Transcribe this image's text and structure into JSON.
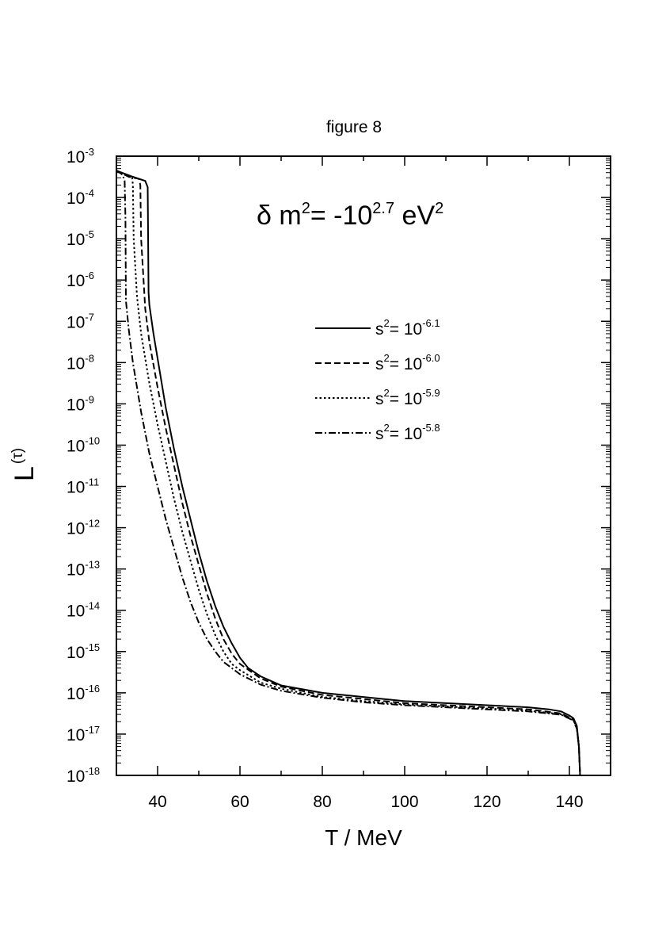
{
  "chart_data": {
    "type": "line",
    "title": "figure 8",
    "xlabel": "T / MeV",
    "ylabel": {
      "base": "L",
      "sup": "(τ)"
    },
    "annotation": {
      "prefix": "δ m",
      "sup1": "2",
      "mid": "= -10",
      "sup2": "2.7",
      "unit": " eV",
      "sup3": "2"
    },
    "xlim": [
      30,
      150
    ],
    "ylim_log10": [
      -18,
      -3
    ],
    "y_scale": "log",
    "x_ticks": [
      40,
      60,
      80,
      100,
      120,
      140
    ],
    "y_ticks_exp": [
      -3,
      -4,
      -5,
      -6,
      -7,
      -8,
      -9,
      -10,
      -11,
      -12,
      -13,
      -14,
      -15,
      -16,
      -17,
      -18
    ],
    "y_tick_base": "10",
    "grid": false,
    "legend_position": "upper-center",
    "series": [
      {
        "name": "s² = 10^-6.1",
        "label_base": "s",
        "label_sup": "2",
        "label_mid": "= 10",
        "label_exp": "-6.1",
        "dash": "solid",
        "points": [
          [
            30,
            -3.35
          ],
          [
            34,
            -3.5
          ],
          [
            37,
            -3.6
          ],
          [
            37.6,
            -3.75
          ],
          [
            37.8,
            -6.3
          ],
          [
            38,
            -6.6
          ],
          [
            39,
            -7.3
          ],
          [
            40,
            -7.9
          ],
          [
            42,
            -9.1
          ],
          [
            44,
            -10.1
          ],
          [
            46,
            -11.0
          ],
          [
            48,
            -11.8
          ],
          [
            50,
            -12.6
          ],
          [
            52,
            -13.3
          ],
          [
            54,
            -13.9
          ],
          [
            56,
            -14.4
          ],
          [
            58,
            -14.8
          ],
          [
            60,
            -15.15
          ],
          [
            62,
            -15.4
          ],
          [
            65,
            -15.6
          ],
          [
            70,
            -15.82
          ],
          [
            80,
            -16.0
          ],
          [
            90,
            -16.1
          ],
          [
            100,
            -16.2
          ],
          [
            110,
            -16.25
          ],
          [
            120,
            -16.3
          ],
          [
            130,
            -16.35
          ],
          [
            135,
            -16.4
          ],
          [
            138,
            -16.45
          ],
          [
            140,
            -16.55
          ],
          [
            141,
            -16.62
          ],
          [
            141.8,
            -16.8
          ],
          [
            142.3,
            -17.3
          ],
          [
            142.6,
            -18.0
          ]
        ]
      },
      {
        "name": "s² = 10^-6.0",
        "label_base": "s",
        "label_sup": "2",
        "label_mid": "= 10",
        "label_exp": "-6.0",
        "dash": "dashed",
        "points": [
          [
            30,
            -3.35
          ],
          [
            33,
            -3.5
          ],
          [
            35.5,
            -3.55
          ],
          [
            35.8,
            -3.7
          ],
          [
            36,
            -5.0
          ],
          [
            37,
            -6.7
          ],
          [
            38,
            -7.5
          ],
          [
            40,
            -8.6
          ],
          [
            42,
            -9.6
          ],
          [
            44,
            -10.5
          ],
          [
            46,
            -11.4
          ],
          [
            48,
            -12.2
          ],
          [
            50,
            -12.9
          ],
          [
            52,
            -13.6
          ],
          [
            54,
            -14.2
          ],
          [
            56,
            -14.7
          ],
          [
            58,
            -15.05
          ],
          [
            60,
            -15.3
          ],
          [
            65,
            -15.65
          ],
          [
            70,
            -15.85
          ],
          [
            80,
            -16.05
          ],
          [
            90,
            -16.15
          ],
          [
            100,
            -16.25
          ],
          [
            110,
            -16.3
          ],
          [
            120,
            -16.35
          ],
          [
            130,
            -16.4
          ],
          [
            138,
            -16.5
          ],
          [
            141,
            -16.65
          ],
          [
            141.8,
            -16.85
          ],
          [
            142.3,
            -17.3
          ],
          [
            142.6,
            -18.0
          ]
        ]
      },
      {
        "name": "s² = 10^-5.9",
        "label_base": "s",
        "label_sup": "2",
        "label_mid": "= 10",
        "label_exp": "-5.9",
        "dash": "dotted",
        "points": [
          [
            30,
            -3.35
          ],
          [
            32,
            -3.45
          ],
          [
            33.8,
            -3.5
          ],
          [
            34,
            -3.7
          ],
          [
            34.2,
            -5.0
          ],
          [
            35,
            -6.4
          ],
          [
            36,
            -7.3
          ],
          [
            38,
            -8.5
          ],
          [
            40,
            -9.5
          ],
          [
            42,
            -10.4
          ],
          [
            44,
            -11.3
          ],
          [
            46,
            -12.1
          ],
          [
            48,
            -12.8
          ],
          [
            50,
            -13.5
          ],
          [
            52,
            -14.1
          ],
          [
            54,
            -14.6
          ],
          [
            56,
            -15.0
          ],
          [
            58,
            -15.3
          ],
          [
            60,
            -15.45
          ],
          [
            65,
            -15.75
          ],
          [
            70,
            -15.9
          ],
          [
            80,
            -16.1
          ],
          [
            90,
            -16.2
          ],
          [
            100,
            -16.28
          ],
          [
            110,
            -16.33
          ],
          [
            120,
            -16.38
          ],
          [
            130,
            -16.43
          ],
          [
            138,
            -16.52
          ],
          [
            141,
            -16.66
          ],
          [
            141.8,
            -16.86
          ],
          [
            142.3,
            -17.3
          ],
          [
            142.6,
            -18.0
          ]
        ]
      },
      {
        "name": "s² = 10^-5.8",
        "label_base": "s",
        "label_sup": "2",
        "label_mid": "= 10",
        "label_exp": "-5.8",
        "dash": "dashdot",
        "points": [
          [
            30,
            -3.35
          ],
          [
            31.5,
            -3.45
          ],
          [
            32,
            -3.6
          ],
          [
            32.2,
            -4.5
          ],
          [
            32.3,
            -6.5
          ],
          [
            33,
            -7.2
          ],
          [
            34,
            -8.0
          ],
          [
            36,
            -9.2
          ],
          [
            38,
            -10.2
          ],
          [
            40,
            -11.0
          ],
          [
            42,
            -11.8
          ],
          [
            44,
            -12.5
          ],
          [
            46,
            -13.2
          ],
          [
            48,
            -13.8
          ],
          [
            50,
            -14.3
          ],
          [
            52,
            -14.7
          ],
          [
            54,
            -15.0
          ],
          [
            56,
            -15.25
          ],
          [
            58,
            -15.4
          ],
          [
            60,
            -15.55
          ],
          [
            65,
            -15.8
          ],
          [
            70,
            -15.95
          ],
          [
            80,
            -16.12
          ],
          [
            90,
            -16.23
          ],
          [
            100,
            -16.3
          ],
          [
            110,
            -16.35
          ],
          [
            120,
            -16.4
          ],
          [
            130,
            -16.45
          ],
          [
            138,
            -16.53
          ],
          [
            141,
            -16.67
          ],
          [
            141.8,
            -16.87
          ],
          [
            142.3,
            -17.3
          ],
          [
            142.6,
            -18.0
          ]
        ]
      }
    ]
  }
}
